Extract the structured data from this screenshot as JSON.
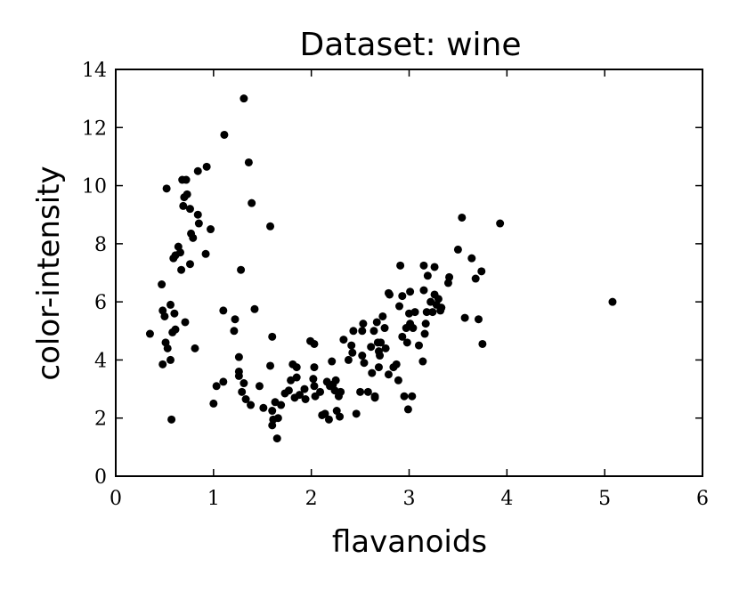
{
  "chart_data": {
    "type": "scatter",
    "title": "Dataset: wine",
    "x_label": "flavanoids",
    "y_label": "color-intensity",
    "color": "#000000",
    "xlim": [
      0,
      6
    ],
    "ylim": [
      0,
      14
    ],
    "xticks": [
      0,
      1,
      2,
      3,
      4,
      5,
      6
    ],
    "yticks": [
      0,
      2,
      4,
      6,
      8,
      10,
      12,
      14
    ],
    "x": [
      0.35,
      0.47,
      0.52,
      0.48,
      0.5,
      0.51,
      0.53,
      0.56,
      0.48,
      0.57,
      0.56,
      0.6,
      0.58,
      0.61,
      0.59,
      0.61,
      0.64,
      0.66,
      0.67,
      0.68,
      0.72,
      0.7,
      0.73,
      0.69,
      0.76,
      0.77,
      0.79,
      0.76,
      0.84,
      0.85,
      0.84,
      0.93,
      0.92,
      0.97,
      0.71,
      0.81,
      1.0,
      1.03,
      1.1,
      1.1,
      1.11,
      1.22,
      1.21,
      1.28,
      1.31,
      1.26,
      1.26,
      1.26,
      1.29,
      1.31,
      1.33,
      1.36,
      1.38,
      1.39,
      1.42,
      1.47,
      1.51,
      1.58,
      1.58,
      1.6,
      1.6,
      1.61,
      1.6,
      1.65,
      1.66,
      1.63,
      1.69,
      1.73,
      1.77,
      1.79,
      1.81,
      1.85,
      1.85,
      1.83,
      1.88,
      1.93,
      1.94,
      1.99,
      2.03,
      2.03,
      2.02,
      2.03,
      2.04,
      2.09,
      2.11,
      2.14,
      2.18,
      2.16,
      2.19,
      2.21,
      2.22,
      2.24,
      2.25,
      2.28,
      2.26,
      2.29,
      2.3,
      2.33,
      2.38,
      2.41,
      2.43,
      2.42,
      2.46,
      2.5,
      2.52,
      2.53,
      2.52,
      2.54,
      2.58,
      2.61,
      2.62,
      2.65,
      2.64,
      2.65,
      2.67,
      2.68,
      2.69,
      2.69,
      2.7,
      2.71,
      2.73,
      2.75,
      2.76,
      2.79,
      2.79,
      2.8,
      2.84,
      2.87,
      2.89,
      2.9,
      2.91,
      2.93,
      2.93,
      2.95,
      2.97,
      2.98,
      2.99,
      3.0,
      3.01,
      3.01,
      3.03,
      3.04,
      3.06,
      3.1,
      3.14,
      3.15,
      3.15,
      3.16,
      3.17,
      3.18,
      3.19,
      3.22,
      3.24,
      3.26,
      3.26,
      3.28,
      3.3,
      3.32,
      3.33,
      3.4,
      3.41,
      3.5,
      3.54,
      3.57,
      3.64,
      3.68,
      3.71,
      3.74,
      3.75,
      3.93,
      5.08
    ],
    "values": [
      4.9,
      6.6,
      9.9,
      5.7,
      5.5,
      4.6,
      4.4,
      4.0,
      3.85,
      1.95,
      5.9,
      5.6,
      4.95,
      5.05,
      7.5,
      7.6,
      7.9,
      7.7,
      7.1,
      10.2,
      10.2,
      9.6,
      9.7,
      9.3,
      9.2,
      8.35,
      8.2,
      7.3,
      9.0,
      8.7,
      10.5,
      10.65,
      7.65,
      8.5,
      5.3,
      4.4,
      2.5,
      3.1,
      3.25,
      5.7,
      11.75,
      5.4,
      5.0,
      7.1,
      13.0,
      4.1,
      3.6,
      3.45,
      2.9,
      3.2,
      2.65,
      10.8,
      2.45,
      9.4,
      5.75,
      3.1,
      2.35,
      8.6,
      3.8,
      4.8,
      2.25,
      1.95,
      1.75,
      1.3,
      2.0,
      2.55,
      2.45,
      2.85,
      2.95,
      3.3,
      3.85,
      3.75,
      3.4,
      2.7,
      2.8,
      3.0,
      2.65,
      4.65,
      4.55,
      3.75,
      3.35,
      3.1,
      2.75,
      2.9,
      2.1,
      2.15,
      1.95,
      3.25,
      3.1,
      3.95,
      3.15,
      2.95,
      3.3,
      2.75,
      2.25,
      2.05,
      2.9,
      4.7,
      4.0,
      4.5,
      5.0,
      4.25,
      2.15,
      2.9,
      5.0,
      5.25,
      4.15,
      3.9,
      2.9,
      4.45,
      3.55,
      2.75,
      5.0,
      2.7,
      5.3,
      4.6,
      3.75,
      4.3,
      4.15,
      4.6,
      5.5,
      5.1,
      4.4,
      3.5,
      6.3,
      6.25,
      3.75,
      3.85,
      3.3,
      5.85,
      7.25,
      4.8,
      6.2,
      2.75,
      5.1,
      4.6,
      2.3,
      5.6,
      6.35,
      5.25,
      2.75,
      5.1,
      5.65,
      4.5,
      3.95,
      6.4,
      7.25,
      4.9,
      5.25,
      5.65,
      6.9,
      6.0,
      5.65,
      7.2,
      6.25,
      5.9,
      6.1,
      5.7,
      5.8,
      6.65,
      6.85,
      7.8,
      8.9,
      5.45,
      7.5,
      6.8,
      5.4,
      7.05,
      4.55,
      8.7,
      6.0
    ]
  }
}
